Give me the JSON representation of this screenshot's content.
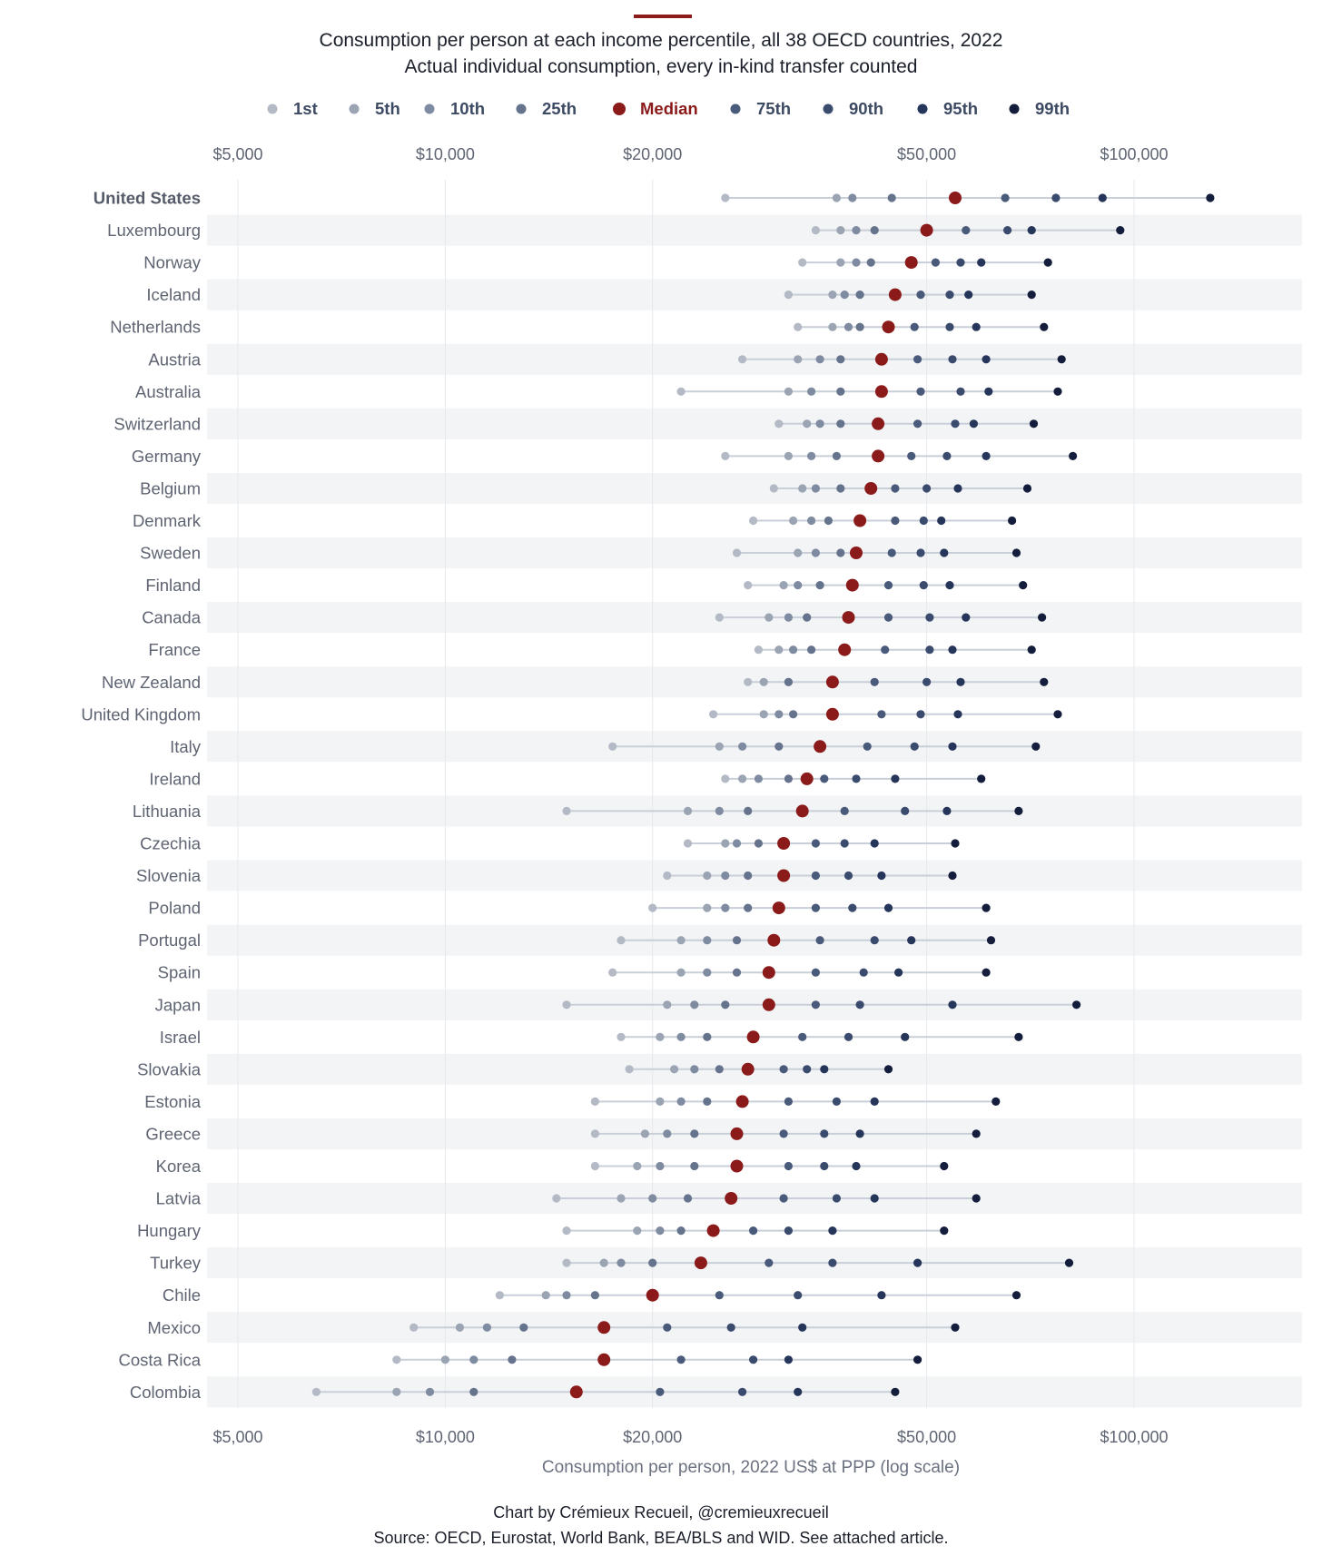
{
  "header": {
    "title": "Consumption per person at each income percentile, all 38 OECD countries, 2022",
    "subtitle": "Actual individual consumption, every in-kind transfer counted",
    "accent_color": "#8b1a1a"
  },
  "footer": {
    "credit": "Chart by Crémieux Recueil, @cremieuxrecueil",
    "source": "Source: OECD, Eurostat, World Bank, BEA/BLS and WID. See attached article."
  },
  "chart_data": {
    "type": "scatter",
    "subtype": "dot-range (dumbbell) per country",
    "xscale": "log",
    "xlim": [
      4500,
      130000
    ],
    "xlabel": "Consumption per person, 2022 US$ at PPP (log scale)",
    "x_ticks": [
      {
        "value": 5000,
        "label": "$5,000"
      },
      {
        "value": 10000,
        "label": "$10,000"
      },
      {
        "value": 20000,
        "label": "$20,000"
      },
      {
        "value": 50000,
        "label": "$50,000"
      },
      {
        "value": 100000,
        "label": "$100,000"
      }
    ],
    "grid": true,
    "legend_position": "top",
    "percentiles": [
      {
        "key": "p1",
        "name": "1st",
        "color": "#b3bac5"
      },
      {
        "key": "p5",
        "name": "5th",
        "color": "#9aa4b3"
      },
      {
        "key": "p10",
        "name": "10th",
        "color": "#7f8ba0"
      },
      {
        "key": "p25",
        "name": "25th",
        "color": "#66738c"
      },
      {
        "key": "p50",
        "name": "Median",
        "color": "#8b1a1a"
      },
      {
        "key": "p75",
        "name": "75th",
        "color": "#4a5a7a"
      },
      {
        "key": "p90",
        "name": "90th",
        "color": "#3b4b6e"
      },
      {
        "key": "p95",
        "name": "95th",
        "color": "#26355a"
      },
      {
        "key": "p99",
        "name": "99th",
        "color": "#141e3c"
      }
    ],
    "highlight_country": "United States",
    "countries": [
      {
        "name": "United States",
        "values": [
          25500,
          37000,
          39000,
          44500,
          55000,
          65000,
          77000,
          90000,
          129000
        ]
      },
      {
        "name": "Luxembourg",
        "values": [
          34500,
          37500,
          39500,
          42000,
          50000,
          57000,
          65500,
          71000,
          95500
        ]
      },
      {
        "name": "Norway",
        "values": [
          33000,
          37500,
          39500,
          41500,
          47500,
          51500,
          56000,
          60000,
          75000
        ]
      },
      {
        "name": "Iceland",
        "values": [
          31500,
          36500,
          38000,
          40000,
          45000,
          49000,
          54000,
          57500,
          71000
        ]
      },
      {
        "name": "Netherlands",
        "values": [
          32500,
          36500,
          38500,
          40000,
          44000,
          48000,
          54000,
          59000,
          74000
        ]
      },
      {
        "name": "Austria",
        "values": [
          27000,
          32500,
          35000,
          37500,
          43000,
          48500,
          54500,
          61000,
          78500
        ]
      },
      {
        "name": "Australia",
        "values": [
          22000,
          31500,
          34000,
          37500,
          43000,
          49000,
          56000,
          61500,
          77500
        ]
      },
      {
        "name": "Switzerland",
        "values": [
          30500,
          33500,
          35000,
          37500,
          42500,
          48500,
          55000,
          58500,
          71500
        ]
      },
      {
        "name": "Germany",
        "values": [
          25500,
          31500,
          34000,
          37000,
          42500,
          47500,
          53500,
          61000,
          81500
        ]
      },
      {
        "name": "Belgium",
        "values": [
          30000,
          33000,
          34500,
          37500,
          41500,
          45000,
          50000,
          55500,
          70000
        ]
      },
      {
        "name": "Denmark",
        "values": [
          28000,
          32000,
          34000,
          36000,
          40000,
          45000,
          49500,
          52500,
          66500
        ]
      },
      {
        "name": "Sweden",
        "values": [
          26500,
          32500,
          34500,
          37500,
          39500,
          44500,
          49000,
          53000,
          67500
        ]
      },
      {
        "name": "Finland",
        "values": [
          27500,
          31000,
          32500,
          35000,
          39000,
          44000,
          49500,
          54000,
          69000
        ]
      },
      {
        "name": "Canada",
        "values": [
          25000,
          29500,
          31500,
          33500,
          38500,
          44000,
          50500,
          57000,
          73500
        ]
      },
      {
        "name": "France",
        "values": [
          28500,
          30500,
          32000,
          34000,
          38000,
          43500,
          50500,
          54500,
          71000
        ]
      },
      {
        "name": "New Zealand",
        "values": [
          27500,
          29000,
          31500,
          31500,
          36500,
          42000,
          50000,
          56000,
          74000
        ]
      },
      {
        "name": "United Kingdom",
        "values": [
          24500,
          29000,
          30500,
          32000,
          36500,
          43000,
          49000,
          55500,
          77500
        ]
      },
      {
        "name": "Italy",
        "values": [
          17500,
          25000,
          27000,
          30500,
          35000,
          41000,
          48000,
          54500,
          72000
        ]
      },
      {
        "name": "Ireland",
        "values": [
          25500,
          27000,
          28500,
          31500,
          33500,
          35500,
          39500,
          45000,
          60000
        ]
      },
      {
        "name": "Lithuania",
        "values": [
          15000,
          22500,
          25000,
          27500,
          33000,
          38000,
          46500,
          53500,
          68000
        ]
      },
      {
        "name": "Czechia",
        "values": [
          22500,
          25500,
          26500,
          28500,
          31000,
          34500,
          38000,
          42000,
          55000
        ]
      },
      {
        "name": "Slovenia",
        "values": [
          21000,
          24000,
          25500,
          27500,
          31000,
          34500,
          38500,
          43000,
          54500
        ]
      },
      {
        "name": "Poland",
        "values": [
          20000,
          24000,
          25500,
          27500,
          30500,
          34500,
          39000,
          44000,
          61000
        ]
      },
      {
        "name": "Portugal",
        "values": [
          18000,
          22000,
          24000,
          26500,
          30000,
          35000,
          42000,
          47500,
          62000
        ]
      },
      {
        "name": "Spain",
        "values": [
          17500,
          22000,
          24000,
          26500,
          29500,
          34500,
          40500,
          45500,
          61000
        ]
      },
      {
        "name": "Japan",
        "values": [
          15000,
          21000,
          23000,
          25500,
          29500,
          34500,
          40000,
          54500,
          82500
        ]
      },
      {
        "name": "Israel",
        "values": [
          18000,
          20500,
          22000,
          24000,
          28000,
          33000,
          38500,
          46500,
          68000
        ]
      },
      {
        "name": "Slovakia",
        "values": [
          18500,
          21500,
          23000,
          25000,
          27500,
          31000,
          33500,
          35500,
          44000
        ]
      },
      {
        "name": "Estonia",
        "values": [
          16500,
          20500,
          22000,
          24000,
          27000,
          31500,
          37000,
          42000,
          63000
        ]
      },
      {
        "name": "Greece",
        "values": [
          16500,
          19500,
          21000,
          23000,
          26500,
          31000,
          35500,
          40000,
          59000
        ]
      },
      {
        "name": "Korea",
        "values": [
          16500,
          19000,
          20500,
          23000,
          26500,
          31500,
          35500,
          39500,
          53000
        ]
      },
      {
        "name": "Latvia",
        "values": [
          14500,
          18000,
          20000,
          22500,
          26000,
          31000,
          37000,
          42000,
          59000
        ]
      },
      {
        "name": "Hungary",
        "values": [
          15000,
          19000,
          20500,
          22000,
          24500,
          28000,
          31500,
          36500,
          53000
        ]
      },
      {
        "name": "Turkey",
        "values": [
          15000,
          17000,
          18000,
          20000,
          23500,
          29500,
          36500,
          48500,
          80500
        ]
      },
      {
        "name": "Chile",
        "values": [
          12000,
          14000,
          15000,
          16500,
          20000,
          25000,
          32500,
          43000,
          67500
        ]
      },
      {
        "name": "Mexico",
        "values": [
          9000,
          10500,
          11500,
          13000,
          17000,
          21000,
          26000,
          33000,
          55000
        ]
      },
      {
        "name": "Costa Rica",
        "values": [
          8500,
          10000,
          11000,
          12500,
          17000,
          22000,
          28000,
          31500,
          48500
        ]
      },
      {
        "name": "Colombia",
        "values": [
          6500,
          8500,
          9500,
          11000,
          15500,
          20500,
          27000,
          32500,
          45000
        ]
      }
    ]
  }
}
